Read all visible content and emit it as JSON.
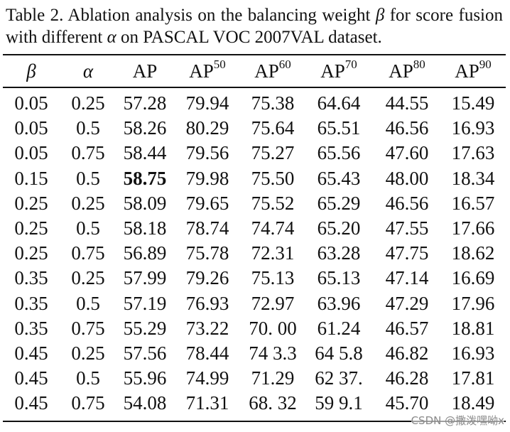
{
  "caption": {
    "line1_a": "Table 2. Ablation analysis on the balancing weight ",
    "beta": "β",
    "line1_b": " for score fusion with different ",
    "alpha": "α",
    "line1_c": " on PASCAL VOC 2007VAL dataset."
  },
  "headers": [
    "β",
    "α",
    "AP",
    "AP",
    "AP",
    "AP",
    "AP",
    "AP"
  ],
  "header_sups": [
    "",
    "",
    "",
    "50",
    "60",
    "70",
    "80",
    "90"
  ],
  "rows": [
    [
      "0.05",
      "0.25",
      "57.28",
      "79.94",
      "75.38",
      "64.64",
      "44.55",
      "15.49"
    ],
    [
      "0.05",
      "0.5",
      "58.26",
      "80.29",
      "75.64",
      "65.51",
      "46.56",
      "16.93"
    ],
    [
      "0.05",
      "0.75",
      "58.44",
      "79.56",
      "75.27",
      "65.56",
      "47.60",
      "17.63"
    ],
    [
      "0.15",
      "0.5",
      "58.75",
      "79.98",
      "75.50",
      "65.43",
      "48.00",
      "18.34"
    ],
    [
      "0.25",
      "0.25",
      "58.09",
      "79.65",
      "75.52",
      "65.29",
      "46.56",
      "16.57"
    ],
    [
      "0.25",
      "0.5",
      "58.18",
      "78.74",
      "74.74",
      "65.20",
      "47.55",
      "17.66"
    ],
    [
      "0.25",
      "0.75",
      "56.89",
      "75.78",
      "72.31",
      "63.28",
      "47.75",
      "18.62"
    ],
    [
      "0.35",
      "0.25",
      "57.99",
      "79.26",
      "75.13",
      "65.13",
      "47.14",
      "16.69"
    ],
    [
      "0.35",
      "0.5",
      "57.19",
      "76.93",
      "72.97",
      "63.96",
      "47.29",
      "17.96"
    ],
    [
      "0.35",
      "0.75",
      "55.29",
      "73.22",
      "70. 00",
      "61.24",
      "46.57",
      "18.81"
    ],
    [
      "0.45",
      "0.25",
      "57.56",
      "78.44",
      "74 3.3",
      "64 5.8",
      "46.82",
      "16.93"
    ],
    [
      "0.45",
      "0.5",
      "55.96",
      "74.99",
      "71.29",
      "62 37.",
      "46.28",
      "17.81"
    ],
    [
      "0.45",
      "0.75",
      "54.08",
      "71.31",
      "68. 32",
      "59 9.1",
      "45.70",
      "18.49"
    ]
  ],
  "bold_cell": {
    "row": 3,
    "col": 2
  },
  "watermark": "CSDN @撒泼嘿呦x"
}
